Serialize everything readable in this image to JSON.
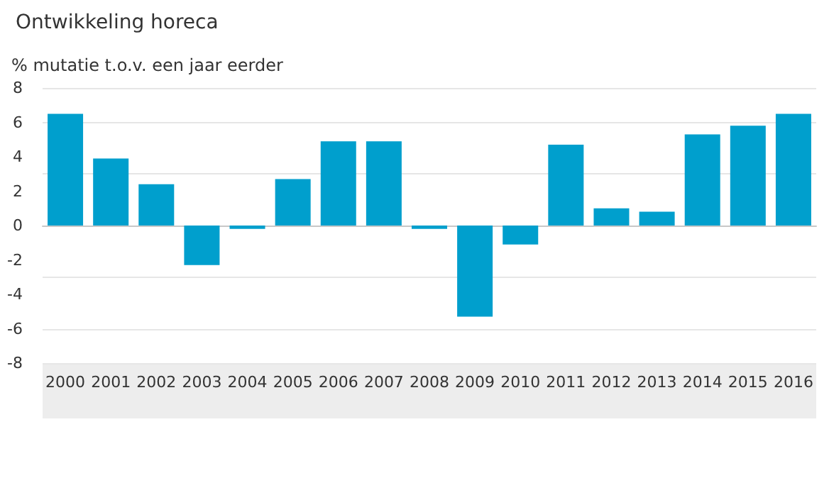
{
  "chart_data": {
    "type": "bar",
    "title": "Ontwikkeling horeca",
    "ylabel": "% mutatie t.o.v. een jaar eerder",
    "categories": [
      "2000",
      "2001",
      "2002",
      "2003",
      "2004",
      "2005",
      "2006",
      "2007",
      "2008",
      "2009",
      "2010",
      "2011",
      "2012",
      "2013",
      "2014",
      "2015",
      "2016"
    ],
    "values": [
      6.5,
      3.9,
      2.4,
      -2.3,
      -0.2,
      2.7,
      4.9,
      4.9,
      -0.2,
      -5.3,
      -1.1,
      4.7,
      1.0,
      0.8,
      5.3,
      5.8,
      6.5
    ],
    "color": "#009fcd",
    "ylim": [
      -8,
      8
    ],
    "yticks": [
      -8,
      -6,
      -4,
      -2,
      0,
      2,
      4,
      6,
      8
    ],
    "grid": "y"
  }
}
